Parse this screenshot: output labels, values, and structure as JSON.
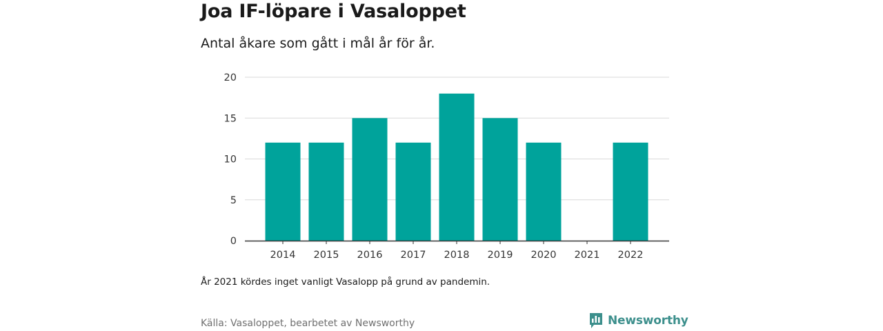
{
  "header": {
    "title": "Joa IF-löpare i Vasaloppet",
    "subtitle": "Antal åkare som gått i mål år för år."
  },
  "footer": {
    "note": "År 2021 kördes inget vanligt Vasalopp på grund av pandemin.",
    "source": "Källa: Vasaloppet, bearbetet av Newsworthy",
    "brand": "Newsworthy",
    "brand_icon": "newsworthy-logo-icon"
  },
  "colors": {
    "bar": "#00a39b",
    "grid": "#d9d9d9",
    "axis": "#333333",
    "brand": "#3c8f8c"
  },
  "chart_data": {
    "type": "bar",
    "title": "Joa IF-löpare i Vasaloppet",
    "subtitle": "Antal åkare som gått i mål år för år.",
    "categories": [
      "2014",
      "2015",
      "2016",
      "2017",
      "2018",
      "2019",
      "2020",
      "2021",
      "2022"
    ],
    "values": [
      12,
      12,
      15,
      12,
      18,
      15,
      12,
      0,
      12
    ],
    "ylim": [
      0,
      20
    ],
    "yticks": [
      0,
      5,
      10,
      15,
      20
    ],
    "grid": true,
    "legend": "none"
  }
}
